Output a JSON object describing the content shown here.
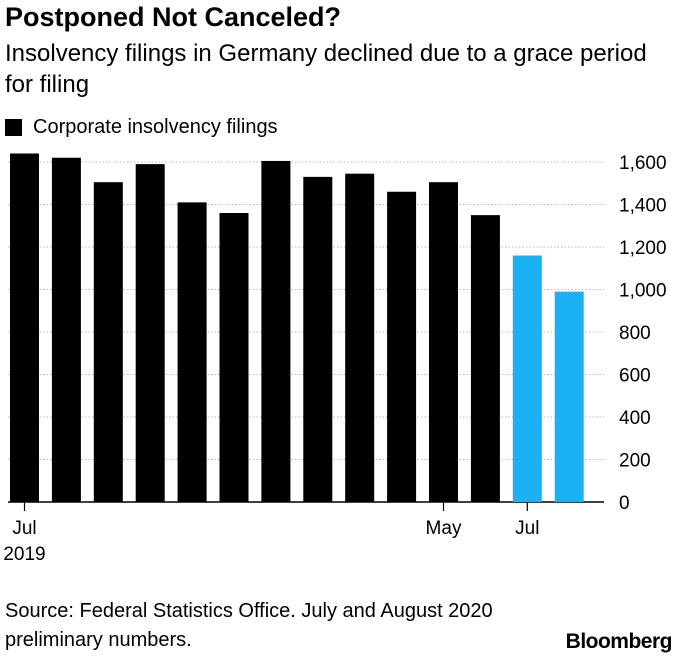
{
  "title": "Postponed Not Canceled?",
  "subtitle": "Insolvency filings in Germany declined due to a grace period for filing",
  "legend": {
    "label": "Corporate insolvency filings"
  },
  "source": "Source: Federal Statistics Office. July and August 2020 preliminary numbers.",
  "brand": "Bloomberg",
  "colors": {
    "bar": "#000000",
    "preliminary": "#1ab2f5",
    "grid": "#b9b9b9"
  },
  "chart_data": {
    "type": "bar",
    "title": "Postponed Not Canceled?",
    "ylim": [
      0,
      1600
    ],
    "yticks": [
      0,
      200,
      400,
      600,
      800,
      1000,
      1200,
      1400,
      1600
    ],
    "ytick_labels": [
      "0",
      "200",
      "400",
      "600",
      "800",
      "1,000",
      "1,200",
      "1,400",
      "1,600"
    ],
    "x_tick_labels": [
      {
        "index": 0,
        "label": "Jul",
        "sublabel": "2019"
      },
      {
        "index": 10,
        "label": "May",
        "sublabel": ""
      },
      {
        "index": 12,
        "label": "Jul",
        "sublabel": ""
      }
    ],
    "series": [
      {
        "name": "Corporate insolvency filings",
        "values": [
          1640,
          1620,
          1505,
          1590,
          1410,
          1360,
          1605,
          1530,
          1545,
          1460,
          1505,
          1350,
          1160,
          990
        ],
        "preliminary": [
          false,
          false,
          false,
          false,
          false,
          false,
          false,
          false,
          false,
          false,
          false,
          false,
          true,
          true
        ]
      }
    ]
  }
}
